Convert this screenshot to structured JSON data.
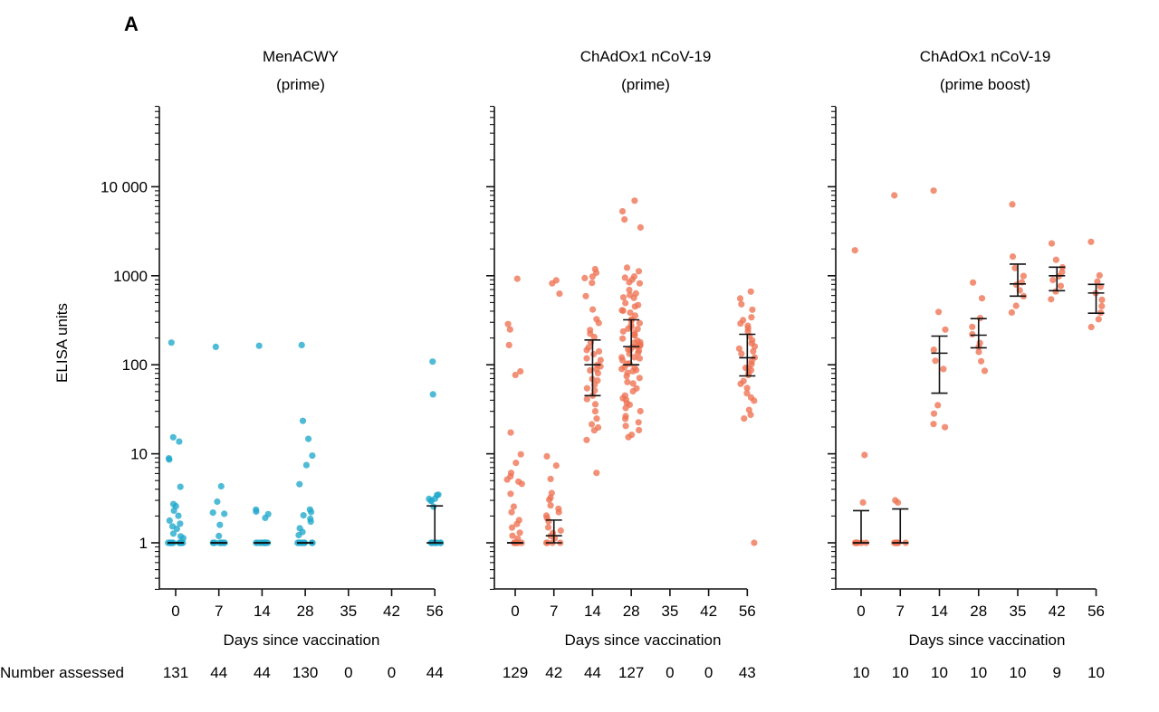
{
  "figure": {
    "panel_letter": "A",
    "row_label": "Number assessed",
    "dot_colors": {
      "MenACWY": "#1fa8cc",
      "ChAdOx1": "#ee7252"
    }
  },
  "chart_data": [
    {
      "type": "scatter",
      "title_line1": "MenACWY",
      "title_line2": "(prime)",
      "xlabel": "Days since vaccination",
      "ylabel": "ELISA units",
      "yscale": "log",
      "ylim": [
        0.3,
        80000
      ],
      "y_ticks": [
        1,
        10,
        100,
        1000,
        10000
      ],
      "y_tick_labels": [
        "1",
        "10",
        "100",
        "1000",
        "10 000"
      ],
      "categories": [
        "0",
        "7",
        "14",
        "28",
        "35",
        "42",
        "56"
      ],
      "number_assessed": [
        "131",
        "44",
        "44",
        "130",
        "0",
        "0",
        "44"
      ],
      "color": "#1fa8cc",
      "points": {
        "0": [
          175,
          15,
          14,
          9,
          8.5,
          4.2,
          2.7,
          2.6,
          2.3,
          2,
          1.8,
          1.6,
          1.5,
          1.4,
          1.3,
          1.2,
          1.1,
          1,
          1,
          1,
          1,
          1,
          1,
          1,
          1,
          1,
          1,
          1,
          1
        ],
        "7": [
          160,
          4.3,
          2.9,
          2.2,
          2.1,
          1.6,
          1.2,
          1,
          1,
          1,
          1,
          1,
          1,
          1,
          1
        ],
        "14": [
          168,
          2.4,
          2.2,
          2.1,
          1.9,
          1,
          1,
          1,
          1,
          1,
          1,
          1,
          1,
          1,
          1
        ],
        "28": [
          165,
          23,
          15,
          9.5,
          7.5,
          4.5,
          2.3,
          2.2,
          2,
          1.9,
          1.7,
          1.5,
          1.3,
          1.2,
          1,
          1,
          1,
          1,
          1,
          1,
          1,
          1,
          1
        ],
        "56": [
          108,
          46,
          3.5,
          3.4,
          3.2,
          3.1,
          3,
          2.9,
          2.6,
          1,
          1,
          1,
          1,
          1,
          1,
          1,
          1
        ]
      },
      "error_bars": {
        "0": {
          "low": 1,
          "median": 1,
          "high": 1
        },
        "7": {
          "low": 1,
          "median": 1,
          "high": 1
        },
        "14": {
          "low": 1,
          "median": 1,
          "high": 1
        },
        "28": {
          "low": 1,
          "median": 1,
          "high": 1
        },
        "56": {
          "low": 1,
          "median": 1,
          "high": 2.6
        }
      }
    },
    {
      "type": "scatter",
      "title_line1": "ChAdOx1 nCoV-19",
      "title_line2": "(prime)",
      "xlabel": "Days since vaccination",
      "ylabel": "",
      "yscale": "log",
      "ylim": [
        0.3,
        80000
      ],
      "y_ticks": [
        1,
        10,
        100,
        1000,
        10000
      ],
      "y_tick_labels": [],
      "categories": [
        "0",
        "7",
        "14",
        "28",
        "35",
        "42",
        "56"
      ],
      "number_assessed": [
        "129",
        "42",
        "44",
        "127",
        "0",
        "0",
        "43"
      ],
      "color": "#ee7252",
      "points": {
        "0": [
          950,
          280,
          250,
          170,
          85,
          75,
          17,
          10,
          8,
          6,
          5.6,
          5.2,
          5,
          4.5,
          3.5,
          2.6,
          2.2,
          1.8,
          1.6,
          1.5,
          1.3,
          1.2,
          1.1,
          1,
          1,
          1,
          1,
          1,
          1,
          1,
          1
        ],
        "7": [
          880,
          820,
          620,
          9.5,
          7.5,
          5.2,
          3.6,
          3.3,
          3,
          2.7,
          2.4,
          2.2,
          2,
          1.9,
          1.7,
          1.5,
          1.4,
          1.3,
          1.2,
          1.1,
          1,
          1,
          1,
          1
        ],
        "14": [
          1200,
          1100,
          1000,
          950,
          850,
          600,
          420,
          320,
          300,
          250,
          220,
          200,
          180,
          160,
          150,
          140,
          130,
          120,
          110,
          100,
          95,
          90,
          85,
          80,
          70,
          65,
          60,
          55,
          50,
          45,
          40,
          35,
          30,
          25,
          22,
          20,
          18,
          14,
          6
        ],
        "28": [
          6800,
          5200,
          4300,
          3500,
          1200,
          1100,
          1000,
          950,
          900,
          850,
          800,
          700,
          650,
          600,
          580,
          550,
          500,
          480,
          450,
          420,
          400,
          380,
          350,
          330,
          320,
          300,
          280,
          270,
          260,
          250,
          240,
          230,
          220,
          210,
          200,
          190,
          180,
          175,
          170,
          165,
          160,
          155,
          150,
          145,
          140,
          135,
          130,
          125,
          120,
          115,
          110,
          105,
          100,
          97,
          94,
          91,
          88,
          85,
          80,
          75,
          70,
          65,
          60,
          55,
          50,
          45,
          42,
          40,
          38,
          35,
          32,
          30,
          27,
          25,
          22,
          20,
          18,
          16,
          15
        ],
        "56": [
          650,
          550,
          480,
          410,
          340,
          310,
          290,
          270,
          250,
          230,
          210,
          190,
          170,
          160,
          150,
          140,
          130,
          120,
          110,
          100,
          95,
          90,
          85,
          80,
          75,
          65,
          60,
          55,
          48,
          44,
          40,
          32,
          28,
          25,
          1
        ]
      },
      "error_bars": {
        "0": {
          "low": 1,
          "median": 1,
          "high": 1
        },
        "7": {
          "low": 1,
          "median": 1.2,
          "high": 1.8
        },
        "14": {
          "low": 45,
          "median": 100,
          "high": 190
        },
        "28": {
          "low": 100,
          "median": 160,
          "high": 320
        },
        "56": {
          "low": 75,
          "median": 120,
          "high": 220
        }
      }
    },
    {
      "type": "scatter",
      "title_line1": "ChAdOx1 nCoV-19",
      "title_line2": "(prime boost)",
      "xlabel": "Days since vaccination",
      "ylabel": "",
      "yscale": "log",
      "ylim": [
        0.3,
        80000
      ],
      "y_ticks": [
        1,
        10,
        100,
        1000,
        10000
      ],
      "y_tick_labels": [],
      "categories": [
        "0",
        "7",
        "14",
        "28",
        "35",
        "42",
        "56"
      ],
      "number_assessed": [
        "10",
        "10",
        "10",
        "10",
        "10",
        "9",
        "10"
      ],
      "color": "#ee7252",
      "points": {
        "0": [
          1950,
          9.5,
          2.8,
          1,
          1,
          1,
          1,
          1,
          1,
          1
        ],
        "7": [
          7800,
          3,
          2.9,
          1,
          1,
          1,
          1,
          1,
          1,
          1
        ],
        "14": [
          9000,
          400,
          250,
          150,
          110,
          90,
          35,
          28,
          21,
          20
        ],
        "28": [
          850,
          550,
          330,
          270,
          220,
          180,
          160,
          140,
          110,
          85
        ],
        "35": [
          6200,
          1650,
          1250,
          1000,
          850,
          780,
          700,
          600,
          450,
          380
        ],
        "42": [
          2300,
          1550,
          1250,
          1100,
          1000,
          900,
          750,
          650,
          550
        ],
        "56": [
          2450,
          1000,
          850,
          750,
          650,
          550,
          450,
          380,
          320,
          270
        ]
      },
      "error_bars": {
        "0": {
          "low": 1,
          "median": 1,
          "high": 2.3
        },
        "7": {
          "low": 1,
          "median": 1,
          "high": 2.4
        },
        "14": {
          "low": 48,
          "median": 135,
          "high": 210
        },
        "28": {
          "low": 155,
          "median": 215,
          "high": 330
        },
        "35": {
          "low": 590,
          "median": 810,
          "high": 1350
        },
        "42": {
          "low": 680,
          "median": 1000,
          "high": 1250
        },
        "56": {
          "low": 380,
          "median": 640,
          "high": 800
        }
      }
    }
  ]
}
